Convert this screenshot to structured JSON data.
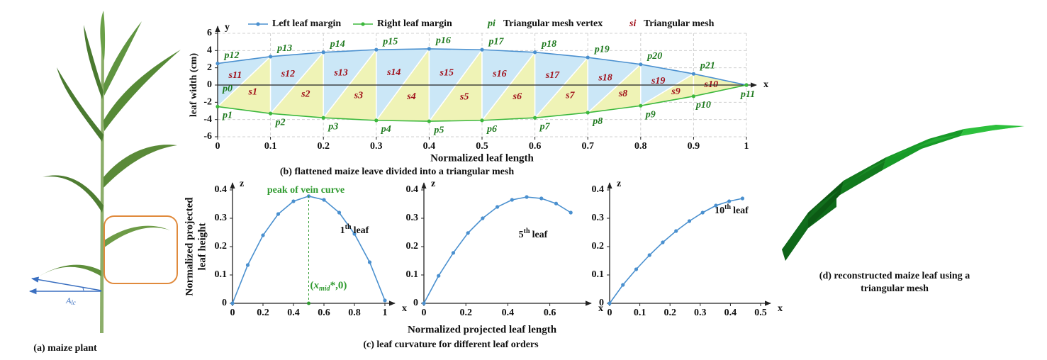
{
  "panels": {
    "a_caption": "(a) maize plant",
    "angle_label": {
      "main": "A",
      "sub": "lc"
    },
    "d_caption_lines": [
      "(d) reconstructed maize leaf using a",
      "triangular mesh"
    ]
  },
  "chart_data": [
    {
      "type": "line",
      "caption": "(b) flattened maize leave divided into a triangular mesh",
      "xlabel": "Normalized leaf length",
      "ylabel": "leaf width (cm)",
      "x_axis_letter": "x",
      "y_axis_letter": "y",
      "x": [
        0,
        0.1,
        0.2,
        0.3,
        0.4,
        0.5,
        0.6,
        0.7,
        0.8,
        0.9,
        1
      ],
      "xlim": [
        0,
        1
      ],
      "xticks": [
        0,
        0.1,
        0.2,
        0.3,
        0.4,
        0.5,
        0.6,
        0.7,
        0.8,
        0.9,
        1
      ],
      "ylim": [
        -6,
        6
      ],
      "yticks": [
        -6,
        -4,
        -2,
        0,
        2,
        4,
        6
      ],
      "grid": true,
      "series": [
        {
          "name": "Left leaf margin",
          "color": "#4a90cf",
          "values": [
            2.5,
            3.3,
            3.8,
            4.1,
            4.2,
            4.1,
            3.8,
            3.2,
            2.4,
            1.3,
            0
          ]
        },
        {
          "name": "Right leaf margin",
          "color": "#3db83d",
          "values": [
            -2.5,
            -3.3,
            -3.8,
            -4.1,
            -4.2,
            -4.1,
            -3.8,
            -3.2,
            -2.4,
            -1.3,
            0
          ]
        }
      ],
      "vertex_labels": [
        "p0",
        "p1",
        "p2",
        "p3",
        "p4",
        "p5",
        "p6",
        "p7",
        "p8",
        "p9",
        "p10",
        "p11",
        "p12",
        "p13",
        "p14",
        "p15",
        "p16",
        "p17",
        "p18",
        "p19",
        "p20",
        "p21"
      ],
      "mesh_labels": [
        "s1",
        "s2",
        "s3",
        "s4",
        "s5",
        "s6",
        "s7",
        "s8",
        "s9",
        "s10",
        "s11",
        "s12",
        "s13",
        "s14",
        "s15",
        "s16",
        "s17",
        "s18",
        "s19"
      ],
      "mesh_colors": [
        "#eff3b6",
        "#cbe7f7"
      ],
      "mesh_legend": {
        "vertex_symbol": "pi",
        "vertex_text": "Triangular mesh vertex",
        "mesh_symbol": "si",
        "mesh_text": "Triangular mesh"
      }
    },
    {
      "type": "line",
      "caption": "(c) leaf curvature for different leaf orders",
      "xlabel": "Normalized projected leaf length",
      "ylabel_lines": [
        "Normalized projected",
        "leaf  height"
      ],
      "x_axis_letter": "x",
      "y_axis_letter": "z",
      "color": "#4a90cf",
      "x": [
        0,
        0.1,
        0.2,
        0.3,
        0.4,
        0.5,
        0.6,
        0.7,
        0.8,
        0.9,
        1
      ],
      "values": [
        0,
        0.135,
        0.24,
        0.315,
        0.36,
        0.378,
        0.365,
        0.32,
        0.245,
        0.145,
        0.01
      ],
      "xlim": [
        0,
        1
      ],
      "xticks": [
        0,
        0.2,
        0.4,
        0.6,
        0.8,
        1
      ],
      "ylim": [
        0,
        0.4
      ],
      "yticks": [
        0,
        0.1,
        0.2,
        0.3,
        0.4
      ],
      "leaf_label": {
        "num": "1",
        "sup": "th",
        "word": "leaf"
      },
      "peak_label": "peak of vein curve",
      "peak_x": 0.5,
      "peak_color": "#2e9a2e",
      "mark_label": {
        "open": "(",
        "var": "x",
        "sub": "mid",
        "rest": "*,0)"
      }
    },
    {
      "type": "line",
      "x_axis_letter": "x",
      "y_axis_letter": "z",
      "color": "#4a90cf",
      "x": [
        0,
        0.07,
        0.14,
        0.21,
        0.28,
        0.35,
        0.42,
        0.49,
        0.56,
        0.63,
        0.7
      ],
      "values": [
        0,
        0.097,
        0.178,
        0.248,
        0.3,
        0.34,
        0.365,
        0.375,
        0.37,
        0.352,
        0.32
      ],
      "xlim": [
        0,
        0.75
      ],
      "xticks": [
        0,
        0.2,
        0.4,
        0.6
      ],
      "ylim": [
        0,
        0.4
      ],
      "yticks": [
        0,
        0.1,
        0.2,
        0.3,
        0.4
      ],
      "leaf_label": {
        "num": "5",
        "sup": "th",
        "word": "leaf"
      }
    },
    {
      "type": "line",
      "x_axis_letter": "x",
      "y_axis_letter": "z",
      "color": "#4a90cf",
      "x": [
        0,
        0.044,
        0.088,
        0.132,
        0.176,
        0.22,
        0.264,
        0.308,
        0.352,
        0.396,
        0.44
      ],
      "values": [
        0,
        0.065,
        0.12,
        0.17,
        0.215,
        0.255,
        0.29,
        0.32,
        0.345,
        0.36,
        0.37
      ],
      "xlim": [
        0,
        0.5
      ],
      "xticks": [
        0,
        0.1,
        0.2,
        0.3,
        0.4,
        0.5
      ],
      "ylim": [
        0,
        0.4
      ],
      "yticks": [
        0,
        0.1,
        0.2,
        0.3,
        0.4
      ],
      "leaf_label": {
        "num": "10",
        "sup": "th",
        "word": "leaf"
      }
    }
  ]
}
